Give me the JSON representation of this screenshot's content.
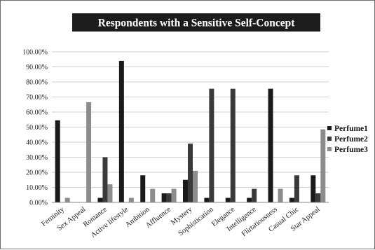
{
  "chart_data": {
    "type": "bar",
    "title": "Respondents with a Sensitive Self-Concept",
    "categories": [
      "Feminity",
      "Sex Appeal",
      "Romance",
      "Active lifestyle",
      "Ambition",
      "Affluence",
      "Mystery",
      "Sophistication",
      "Elegance",
      "Intelligence",
      "Flirtatiousness",
      "Casual Chic",
      "Star Appeal"
    ],
    "series": [
      {
        "name": "Perfume1",
        "color": "#1a1a1a",
        "values": [
          54.5,
          0,
          3,
          94,
          18,
          6,
          15,
          3,
          3,
          3,
          75.5,
          3,
          18
        ]
      },
      {
        "name": "Perfume2",
        "color": "#3a3a3a",
        "values": [
          0,
          0,
          30,
          0,
          0,
          6,
          39,
          75.5,
          75.5,
          9,
          0,
          18,
          6
        ]
      },
      {
        "name": "Perfume3",
        "color": "#8c8c8c",
        "values": [
          3,
          66.5,
          12,
          3,
          9,
          9,
          21,
          0,
          0,
          0,
          9,
          0,
          48.5
        ]
      }
    ],
    "y_ticks": [
      "0.00%",
      "10.00%",
      "20.00%",
      "30.00%",
      "40.00%",
      "50.00%",
      "60.00%",
      "70.00%",
      "80.00%",
      "90.00%",
      "100.00%"
    ],
    "ylim": [
      0,
      100
    ],
    "grid": true,
    "legend_position": "right"
  }
}
